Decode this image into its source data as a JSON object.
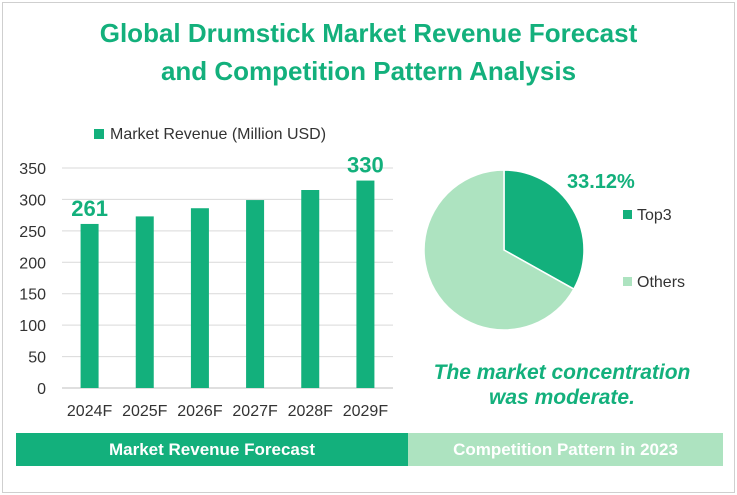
{
  "title_line1": "Global Drumstick Market Revenue Forecast",
  "title_line2": "and Competition Pattern Analysis",
  "chart_data": [
    {
      "type": "bar",
      "title": "Market Revenue Forecast",
      "legend": "Market Revenue (Million USD)",
      "legend_position": "top",
      "categories": [
        "2024F",
        "2025F",
        "2026F",
        "2027F",
        "2028F",
        "2029F"
      ],
      "values": [
        261,
        273,
        286,
        299,
        315,
        330
      ],
      "data_labels": {
        "0": "261",
        "5": "330"
      },
      "yticks": [
        "0",
        "50",
        "100",
        "150",
        "200",
        "250",
        "300",
        "350"
      ],
      "ylim": [
        0,
        350
      ],
      "grid": true,
      "color": "#13b07c"
    },
    {
      "type": "pie",
      "title": "Competition Pattern in 2023",
      "slices": [
        {
          "name": "Top3",
          "value": 33.12,
          "color": "#13b07c"
        },
        {
          "name": "Others",
          "value": 66.88,
          "color": "#ade3c0"
        }
      ],
      "data_label": "33.12%",
      "legend_position": "right"
    }
  ],
  "note": "The market concentration was moderate.",
  "footer_left": "Market Revenue Forecast",
  "footer_right": "Competition Pattern in 2023"
}
